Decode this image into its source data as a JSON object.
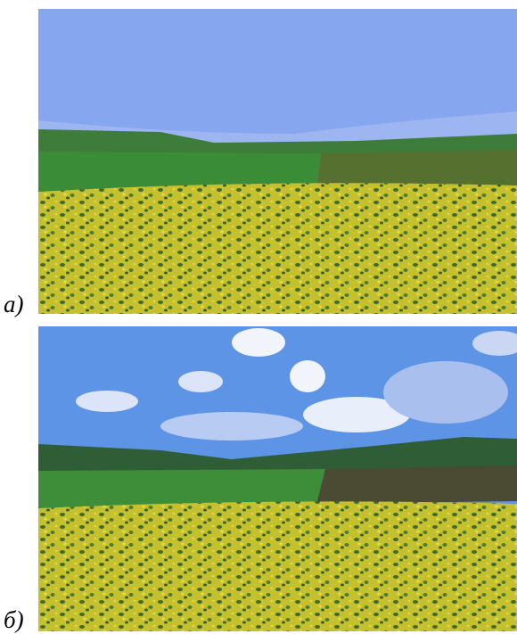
{
  "figures": [
    {
      "label": "а)"
    },
    {
      "label": "б)"
    }
  ]
}
